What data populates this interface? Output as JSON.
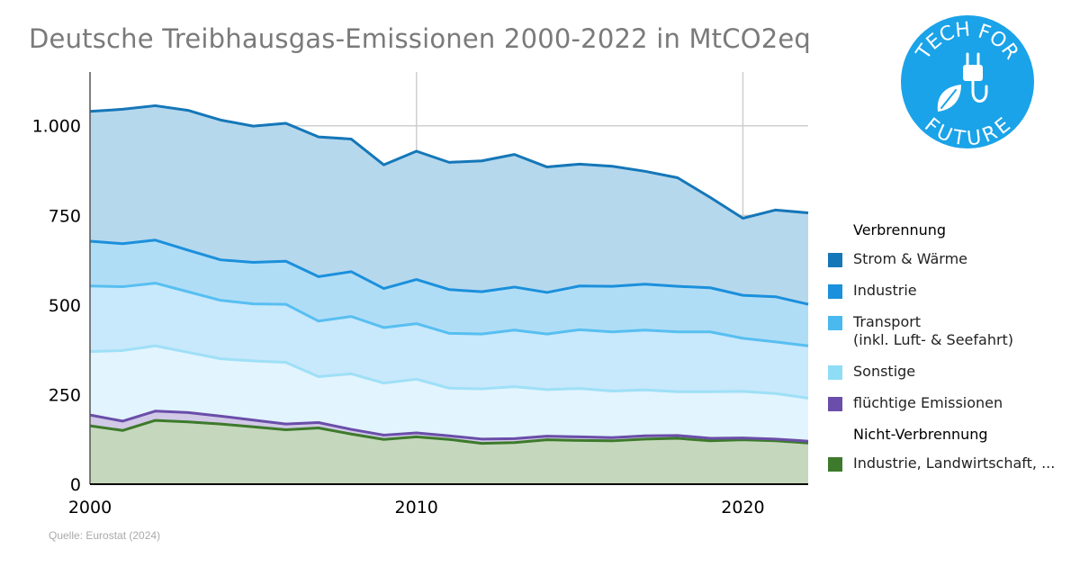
{
  "title": "Deutsche Treibhausgas-Emissionen 2000-2022 in MtCO2eq",
  "source": "Quelle: Eurostat (2024)",
  "logo": {
    "top_text": "TECH FOR",
    "bottom_text": "FUTURE",
    "color": "#1aa3e8",
    "icon": "plug-leaf-icon"
  },
  "legend": {
    "heading_combustion": "Verbrennung",
    "heading_non_combustion": "Nicht-Verbrennung",
    "items": [
      {
        "label": "Strom & Wärme",
        "label2": "",
        "color": "#1577b8"
      },
      {
        "label": "Industrie",
        "label2": "",
        "color": "#1b90dc"
      },
      {
        "label": "Transport",
        "label2": "(inkl. Luft- & Seefahrt)",
        "color": "#4ab9f0"
      },
      {
        "label": "Sonstige",
        "label2": "",
        "color": "#8fdcf6"
      },
      {
        "label": "flüchtige Emissionen",
        "label2": "",
        "color": "#6a4ea9"
      },
      {
        "label": "Industrie, Landwirtschaft, ...",
        "label2": "",
        "color": "#3d7a2b"
      }
    ]
  },
  "chart_data": {
    "type": "area",
    "stacked": true,
    "x": [
      2000,
      2001,
      2002,
      2003,
      2004,
      2005,
      2006,
      2007,
      2008,
      2009,
      2010,
      2011,
      2012,
      2013,
      2014,
      2015,
      2016,
      2017,
      2018,
      2019,
      2020,
      2021,
      2022
    ],
    "xticks": [
      2000,
      2010,
      2020
    ],
    "xtick_labels": [
      "2000",
      "2010",
      "2020"
    ],
    "xlim": [
      2000,
      2022
    ],
    "ylim": [
      0,
      1150
    ],
    "yticks": [
      0,
      250,
      500,
      750,
      1000
    ],
    "ytick_labels": [
      "0",
      "250",
      "500",
      "750",
      "1.000"
    ],
    "grid": true,
    "legend_position": "right",
    "series": [
      {
        "name": "Industrie, Landwirtschaft, ...",
        "line_color": "#3d7a2b",
        "fill_color": "#c5d8bd",
        "values": [
          163,
          150,
          178,
          174,
          168,
          160,
          152,
          157,
          140,
          125,
          132,
          125,
          114,
          116,
          124,
          122,
          121,
          126,
          128,
          121,
          124,
          121,
          115
        ]
      },
      {
        "name": "flüchtige Emissionen",
        "line_color": "#6a4ea9",
        "fill_color": "#d1c9e6",
        "values": [
          30,
          26,
          26,
          26,
          22,
          19,
          16,
          15,
          13,
          12,
          11,
          10,
          12,
          11,
          10,
          10,
          9,
          9,
          8,
          7,
          5,
          5,
          5
        ]
      },
      {
        "name": "Sonstige",
        "line_color": "#9ee0f7",
        "fill_color": "#e2f4fd",
        "values": [
          177,
          197,
          182,
          168,
          160,
          165,
          172,
          128,
          155,
          145,
          150,
          133,
          140,
          145,
          130,
          135,
          130,
          128,
          122,
          130,
          130,
          127,
          120
        ]
      },
      {
        "name": "Transport",
        "line_color": "#57bff1",
        "fill_color": "#c8e8fb",
        "values": [
          183,
          178,
          175,
          169,
          163,
          159,
          162,
          155,
          160,
          155,
          155,
          153,
          153,
          158,
          155,
          164,
          165,
          167,
          167,
          167,
          148,
          144,
          146
        ]
      },
      {
        "name": "Industrie",
        "line_color": "#1b90dc",
        "fill_color": "#b0ddf6",
        "values": [
          125,
          120,
          120,
          116,
          113,
          116,
          120,
          124,
          125,
          109,
          123,
          122,
          118,
          120,
          116,
          122,
          127,
          128,
          127,
          123,
          120,
          126,
          116
        ]
      },
      {
        "name": "Strom & Wärme",
        "line_color": "#1577b8",
        "fill_color": "#b6d8ed",
        "values": [
          362,
          375,
          375,
          390,
          390,
          380,
          385,
          390,
          370,
          345,
          358,
          355,
          365,
          370,
          350,
          340,
          335,
          315,
          303,
          252,
          215,
          242,
          255
        ]
      }
    ]
  }
}
